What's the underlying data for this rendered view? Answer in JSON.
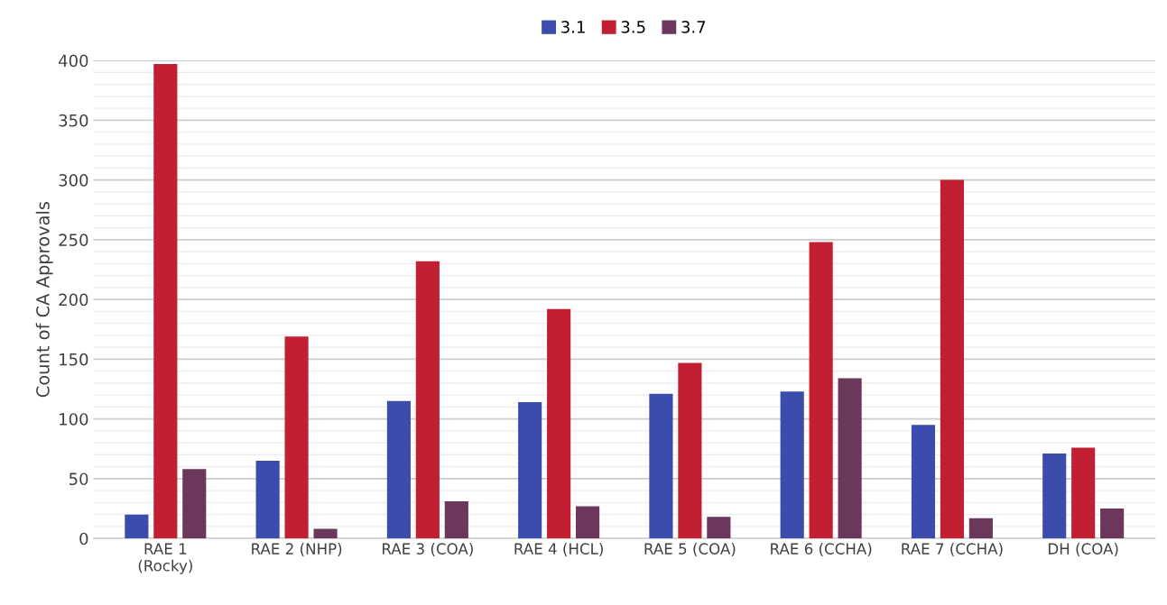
{
  "chart_data": {
    "type": "bar",
    "ylabel": "Count of CA Approvals",
    "categories": [
      "RAE 1\n(Rocky)",
      "RAE 2 (NHP)",
      "RAE 3 (COA)",
      "RAE 4 (HCL)",
      "RAE 5 (COA)",
      "RAE 6 (CCHA)",
      "RAE 7 (CCHA)",
      "DH (COA)"
    ],
    "series": [
      {
        "name": "3.1",
        "color": "#3b4cad",
        "values": [
          20,
          65,
          115,
          114,
          121,
          123,
          95,
          71
        ]
      },
      {
        "name": "3.5",
        "color": "#c21f32",
        "values": [
          397,
          169,
          232,
          192,
          147,
          248,
          300,
          76
        ]
      },
      {
        "name": "3.7",
        "color": "#6b375a",
        "values": [
          58,
          8,
          31,
          27,
          18,
          134,
          17,
          25
        ]
      }
    ],
    "ylim": [
      0,
      400
    ],
    "yticks": [
      0,
      {
        "value": 10,
        "label": null
      },
      {
        "value": 20,
        "label": null
      },
      {
        "value": 30,
        "label": null
      },
      {
        "value": 40,
        "label": null
      },
      50,
      {
        "value": 60,
        "label": null
      },
      {
        "value": 70,
        "label": null
      },
      {
        "value": 80,
        "label": null
      },
      {
        "value": 90,
        "label": null
      },
      100,
      {
        "value": 110,
        "label": null
      },
      {
        "value": 120,
        "label": null
      },
      {
        "value": 130,
        "label": null
      },
      {
        "value": 140,
        "label": null
      },
      150,
      {
        "value": 160,
        "label": null
      },
      {
        "value": 170,
        "label": null
      },
      {
        "value": 180,
        "label": null
      },
      {
        "value": 190,
        "label": null
      },
      200,
      {
        "value": 210,
        "label": null
      },
      {
        "value": 220,
        "label": null
      },
      {
        "value": 230,
        "label": null
      },
      {
        "value": 240,
        "label": null
      },
      250,
      {
        "value": 260,
        "label": null
      },
      {
        "value": 270,
        "label": null
      },
      {
        "value": 280,
        "label": null
      },
      {
        "value": 290,
        "label": null
      },
      300,
      {
        "value": 310,
        "label": null
      },
      {
        "value": 320,
        "label": null
      },
      {
        "value": 330,
        "label": null
      },
      {
        "value": 340,
        "label": null
      },
      350,
      {
        "value": 360,
        "label": null
      },
      {
        "value": 370,
        "label": null
      },
      {
        "value": 380,
        "label": null
      },
      {
        "value": 390,
        "label": null
      },
      400
    ],
    "grid": "y",
    "legend": "top"
  }
}
